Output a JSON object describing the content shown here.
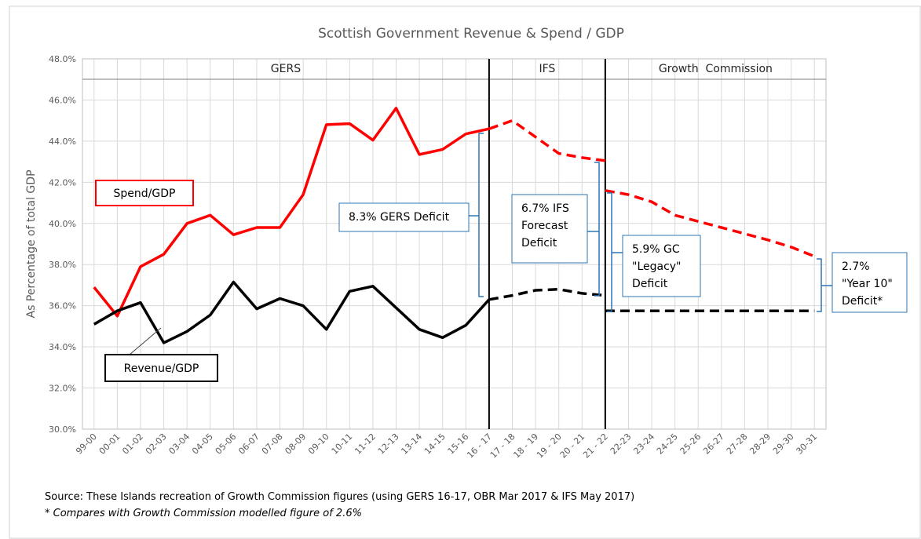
{
  "chart_data": {
    "type": "line",
    "title": "Scottish Government Revenue & Spend / GDP",
    "y_label": "As Percentage of total GDP",
    "categories": [
      "99-00",
      "00-01",
      "01-02",
      "02-03",
      "03-04",
      "04-05",
      "05-06",
      "06-07",
      "07-08",
      "08-09",
      "09-10",
      "10-11",
      "11-12",
      "12-13",
      "13-14",
      "14-15",
      "15-16",
      "16 - 17",
      "17 - 18",
      "18 - 19",
      "19 - 20",
      "20 - 21",
      "21 - 22",
      "22-23",
      "23-24",
      "24-25",
      "25-26",
      "26-27",
      "27-28",
      "28-29",
      "29-30",
      "30-31"
    ],
    "series": [
      {
        "name": "Spend/GDP",
        "color": "#ff0000",
        "dashed": false,
        "values": [
          36.9,
          35.5,
          37.9,
          38.5,
          40.0,
          40.4,
          39.45,
          39.8,
          39.8,
          41.4,
          44.8,
          44.85,
          44.05,
          45.6,
          43.35,
          43.6,
          44.35,
          44.6,
          null,
          null,
          null,
          null,
          null,
          null,
          null,
          null,
          null,
          null,
          null,
          null,
          null,
          null
        ]
      },
      {
        "color": "#ff0000",
        "dashed": true,
        "values": [
          null,
          null,
          null,
          null,
          null,
          null,
          null,
          null,
          null,
          null,
          null,
          null,
          null,
          null,
          null,
          null,
          null,
          44.6,
          45.0,
          44.2,
          43.4,
          43.2,
          43.05,
          null,
          null,
          null,
          null,
          null,
          null,
          null,
          null,
          null
        ]
      },
      {
        "color": "#ff0000",
        "dashed": true,
        "values": [
          null,
          null,
          null,
          null,
          null,
          null,
          null,
          null,
          null,
          null,
          null,
          null,
          null,
          null,
          null,
          null,
          null,
          null,
          null,
          null,
          null,
          null,
          41.6,
          41.4,
          41.05,
          40.4,
          40.1,
          39.8,
          39.5,
          39.2,
          38.85,
          38.4
        ]
      },
      {
        "name": "Revenue/GDP",
        "color": "#000000",
        "dashed": false,
        "values": [
          35.1,
          35.75,
          36.15,
          34.2,
          34.75,
          35.55,
          37.15,
          35.85,
          36.35,
          36.0,
          34.85,
          36.7,
          36.95,
          35.9,
          34.85,
          34.45,
          35.05,
          36.3,
          null,
          null,
          null,
          null,
          null,
          null,
          null,
          null,
          null,
          null,
          null,
          null,
          null,
          null
        ]
      },
      {
        "color": "#000000",
        "dashed": true,
        "values": [
          null,
          null,
          null,
          null,
          null,
          null,
          null,
          null,
          null,
          null,
          null,
          null,
          null,
          null,
          null,
          null,
          null,
          36.3,
          36.5,
          36.75,
          36.8,
          36.6,
          36.5,
          null,
          null,
          null,
          null,
          null,
          null,
          null,
          null,
          null
        ]
      },
      {
        "color": "#000000",
        "dashed": true,
        "values": [
          null,
          null,
          null,
          null,
          null,
          null,
          null,
          null,
          null,
          null,
          null,
          null,
          null,
          null,
          null,
          null,
          null,
          null,
          null,
          null,
          null,
          null,
          35.75,
          35.75,
          35.75,
          35.75,
          35.75,
          35.75,
          35.75,
          35.75,
          35.75,
          35.75
        ]
      }
    ],
    "ylim": [
      30,
      48
    ],
    "yticks": [
      {
        "value": 30,
        "label": "30.0%"
      },
      {
        "value": 32,
        "label": "32.0%"
      },
      {
        "value": 34,
        "label": "34.0%"
      },
      {
        "value": 36,
        "label": "36.0%"
      },
      {
        "value": 38,
        "label": "38.0%"
      },
      {
        "value": 40,
        "label": "40.0%"
      },
      {
        "value": 42,
        "label": "42.0%"
      },
      {
        "value": 44,
        "label": "44.0%"
      },
      {
        "value": 46,
        "label": "46.0%"
      },
      {
        "value": 48,
        "label": "48.0%"
      }
    ],
    "grid": true,
    "regions": [
      {
        "label": "GERS",
        "from": "99-00",
        "to": "16 - 17"
      },
      {
        "label": "IFS",
        "from": "16 - 17",
        "to": "21 - 22"
      },
      {
        "label": "Growth  Commission",
        "from": "21 - 22",
        "to": "30-31"
      }
    ],
    "annotations": {
      "gers_deficit": [
        "8.3% GERS Deficit"
      ],
      "ifs_deficit": [
        "6.7% IFS",
        "Forecast",
        "Deficit"
      ],
      "gc_deficit": [
        "5.9% GC",
        "\"Legacy\"",
        "Deficit"
      ],
      "year10_deficit": [
        "2.7%",
        "\"Year 10\"",
        "Deficit*"
      ]
    },
    "source": "Source: These Islands recreation of Growth Commission figures (using GERS 16-17, OBR Mar 2017 & IFS May 2017)",
    "footnote": "* Compares with Growth Commission modelled figure of 2.6%"
  }
}
